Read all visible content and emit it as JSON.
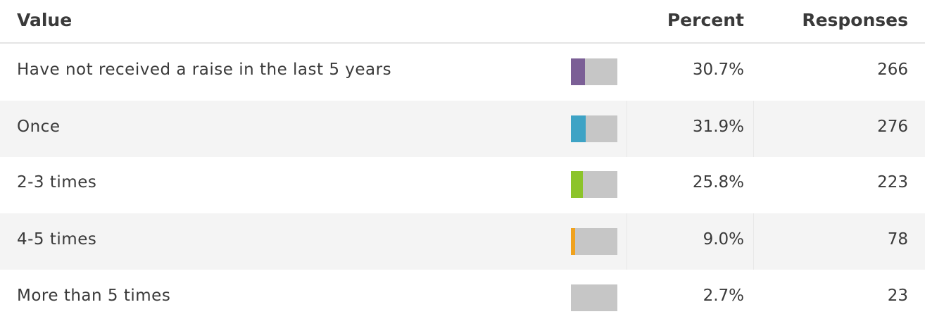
{
  "header": {
    "value": "Value",
    "percent": "Percent",
    "responses": "Responses"
  },
  "table": {
    "rows": [
      {
        "value": "Have not received a raise in the last 5 years",
        "percent": 30.7,
        "percent_label": "30.7%",
        "responses": 266,
        "color": "#7b5f96"
      },
      {
        "value": "Once",
        "percent": 31.9,
        "percent_label": "31.9%",
        "responses": 276,
        "color": "#3ea3c5"
      },
      {
        "value": "2-3 times",
        "percent": 25.8,
        "percent_label": "25.8%",
        "responses": 223,
        "color": "#8cc42a"
      },
      {
        "value": "4-5 times",
        "percent": 9.0,
        "percent_label": "9.0%",
        "responses": 78,
        "color": "#f0a21e"
      },
      {
        "value": "More than 5 times",
        "percent": 2.7,
        "percent_label": "2.7%",
        "responses": 23,
        "color": "#c6c6c6"
      }
    ]
  }
}
